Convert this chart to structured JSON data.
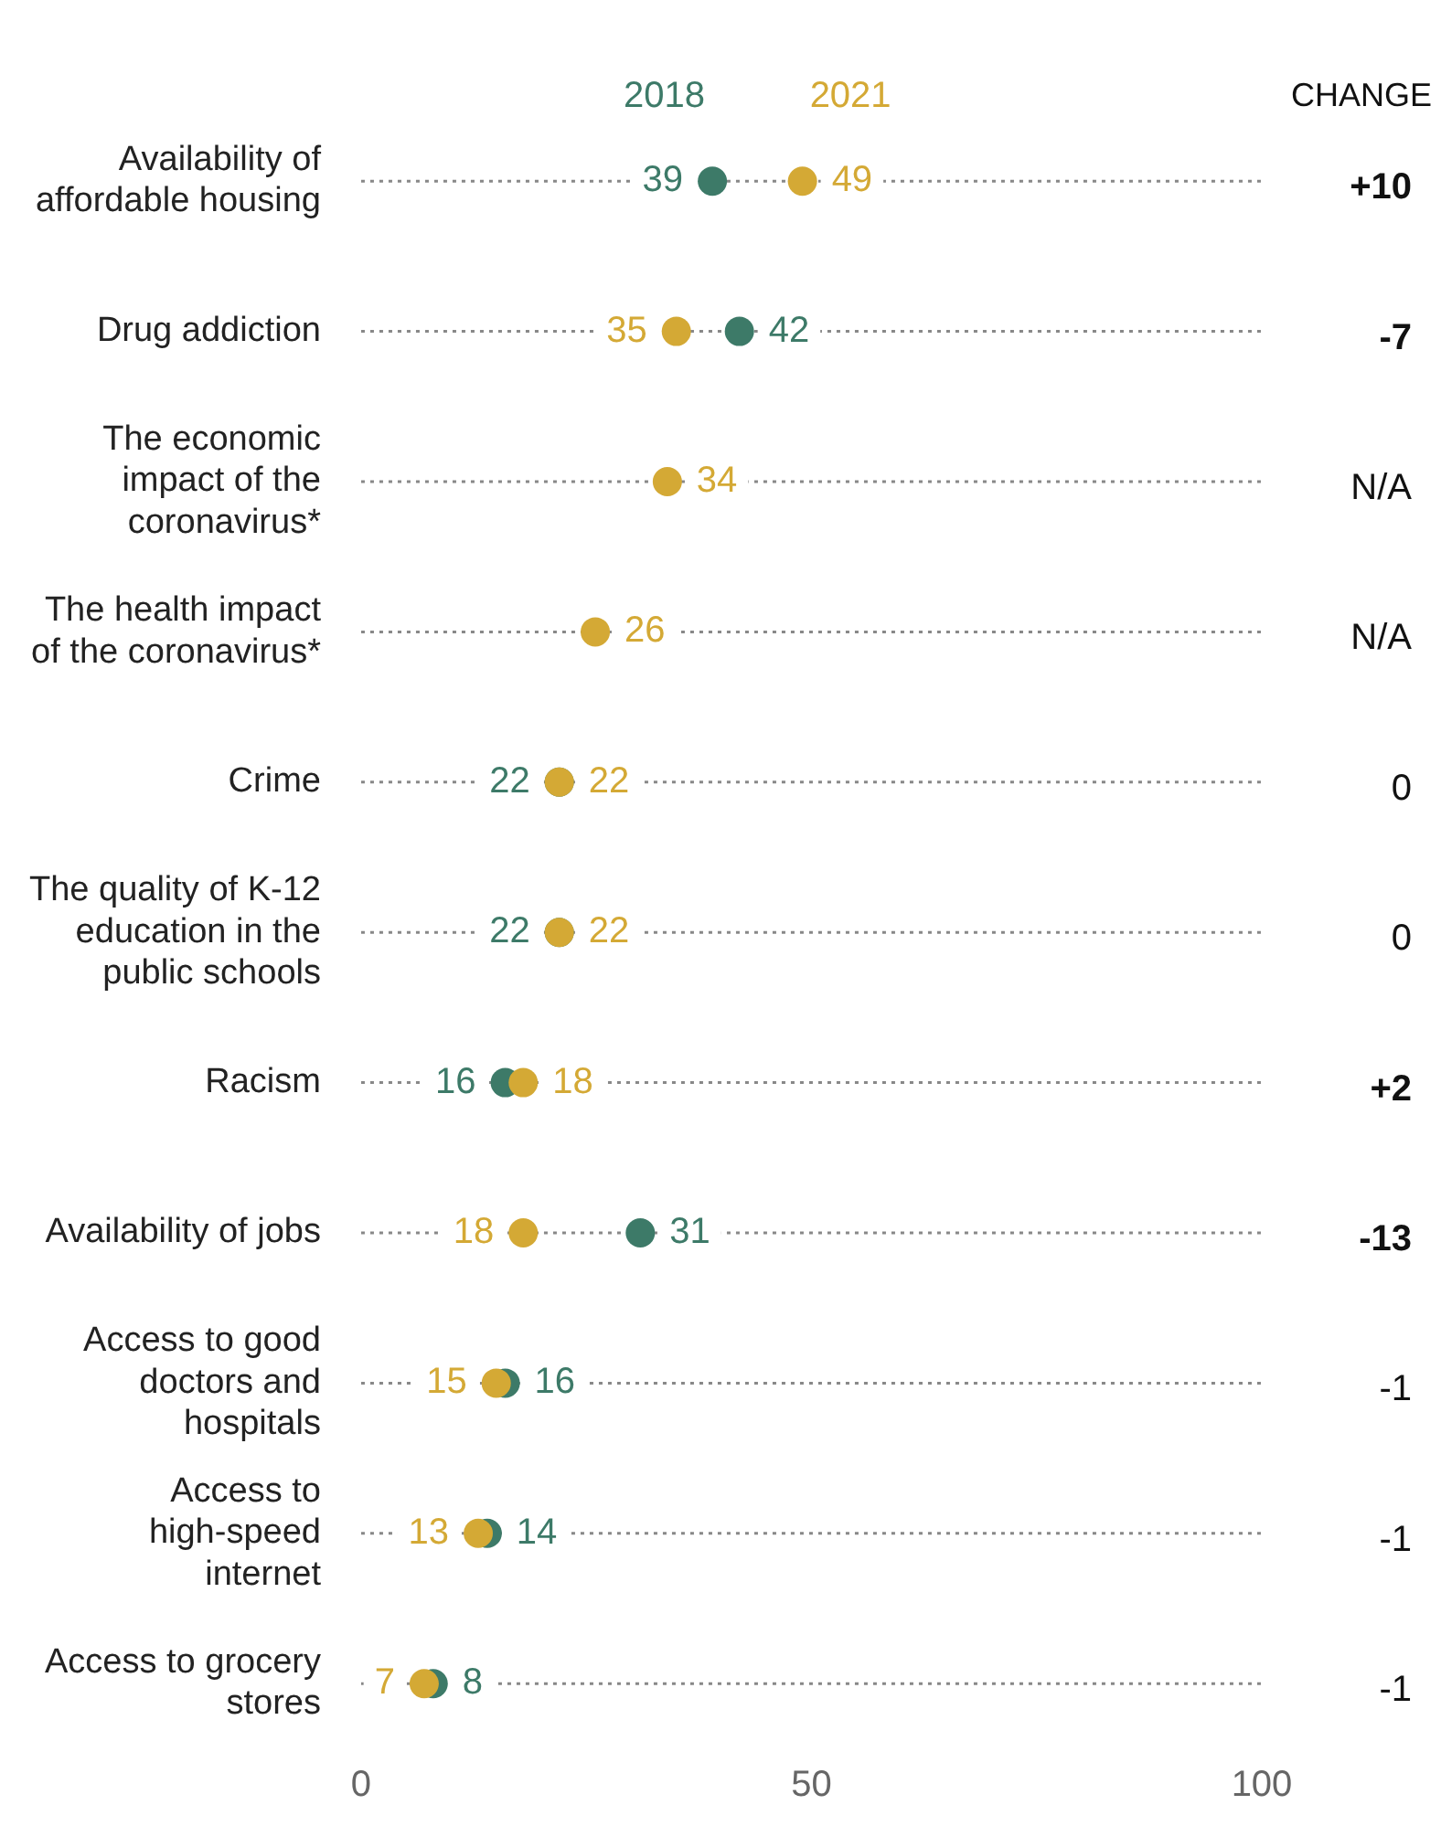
{
  "chart_data": {
    "type": "scatter",
    "orientation": "horizontal",
    "categories": [
      "Availability of affordable housing",
      "Drug addiction",
      "The economic impact of the coronavirus*",
      "The health impact of the coronavirus*",
      "Crime",
      "The quality of K-12 education in the public schools",
      "Racism",
      "Availability of jobs",
      "Access to good doctors and hospitals",
      "Access to high-speed internet",
      "Access to grocery stores"
    ],
    "series": [
      {
        "name": "2018",
        "color": "#3d7a68",
        "values": [
          39,
          42,
          null,
          null,
          22,
          22,
          16,
          31,
          16,
          14,
          8
        ]
      },
      {
        "name": "2021",
        "color": "#d4a935",
        "values": [
          49,
          35,
          34,
          26,
          22,
          22,
          18,
          18,
          15,
          13,
          7
        ]
      }
    ],
    "xlim": [
      0,
      100
    ],
    "xticks": [
      0,
      50,
      100
    ],
    "grid": "y",
    "line_style": "dotted",
    "marker": "circle",
    "data_labels": true,
    "legend": "top",
    "annotations": [
      "CHANGE",
      "+10",
      "-7",
      "N/A",
      "N/A",
      "0",
      "0",
      "+2",
      "-13",
      "-1",
      "-1",
      "-1"
    ]
  }
}
